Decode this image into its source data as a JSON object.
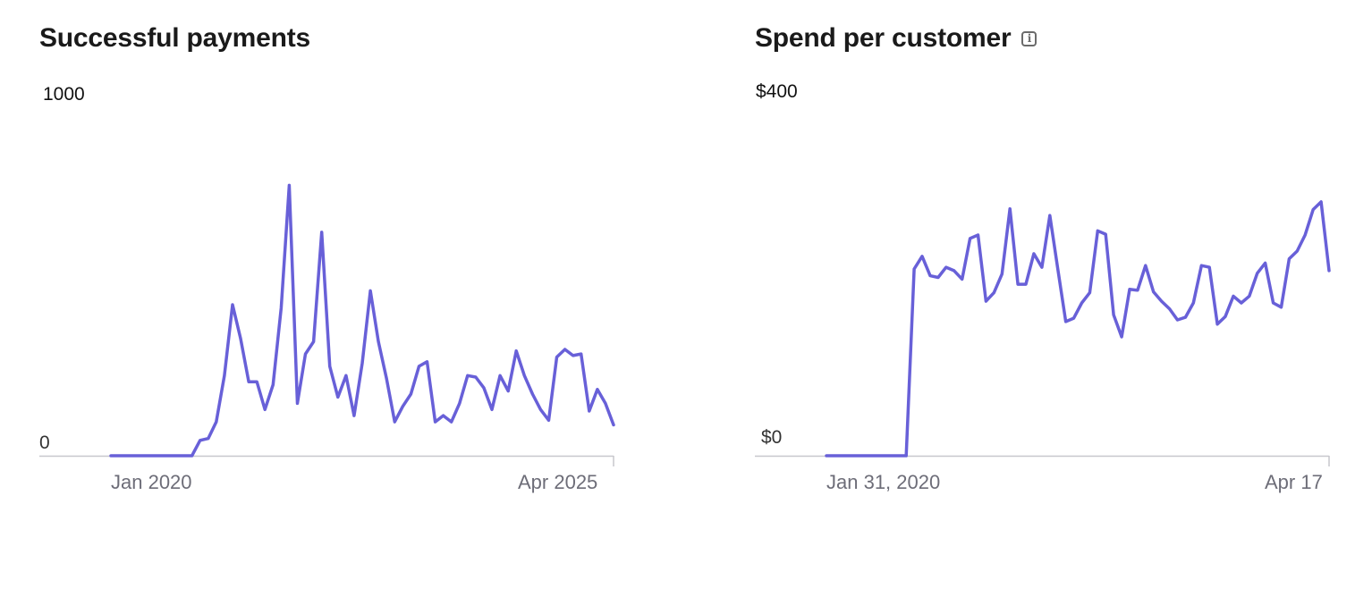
{
  "chart_data": [
    {
      "type": "line",
      "title": "Successful payments",
      "ylim": [
        0,
        1000
      ],
      "y_tick_labels": {
        "max": "1000",
        "min": "0"
      },
      "x_tick_labels": {
        "first": "Jan 2020",
        "last": "Apr 2025"
      },
      "color": "#6860d8",
      "axis_color": "#c7c7cc",
      "grid": false,
      "values": [
        0,
        0,
        0,
        0,
        0,
        0,
        0,
        0,
        0,
        0,
        0,
        50,
        56,
        110,
        260,
        490,
        380,
        240,
        240,
        150,
        230,
        480,
        877,
        170,
        330,
        370,
        725,
        290,
        190,
        260,
        130,
        300,
        535,
        370,
        250,
        110,
        160,
        200,
        290,
        305,
        110,
        130,
        110,
        170,
        260,
        255,
        220,
        150,
        260,
        210,
        340,
        260,
        200,
        150,
        115,
        320,
        345,
        325,
        330,
        145,
        215,
        170,
        100
      ]
    },
    {
      "type": "line",
      "title": "Spend per customer",
      "ylim": [
        0,
        400
      ],
      "y_tick_labels": {
        "max": "$400",
        "min": "$0"
      },
      "x_tick_labels": {
        "first": "Jan 31, 2020",
        "last": "Apr 17"
      },
      "color": "#6860d8",
      "axis_color": "#c7c7cc",
      "grid": false,
      "info_icon": "info-icon",
      "values": [
        0,
        0,
        0,
        0,
        0,
        0,
        0,
        0,
        0,
        0,
        0,
        220,
        235,
        212,
        210,
        222,
        218,
        208,
        256,
        260,
        182,
        192,
        214,
        291,
        202,
        202,
        238,
        222,
        283,
        220,
        158,
        162,
        180,
        192,
        265,
        261,
        166,
        140,
        196,
        195,
        224,
        193,
        182,
        173,
        160,
        163,
        180,
        224,
        222,
        155,
        164,
        188,
        180,
        188,
        215,
        227,
        180,
        175,
        232,
        241,
        260,
        290,
        299,
        218
      ]
    }
  ]
}
